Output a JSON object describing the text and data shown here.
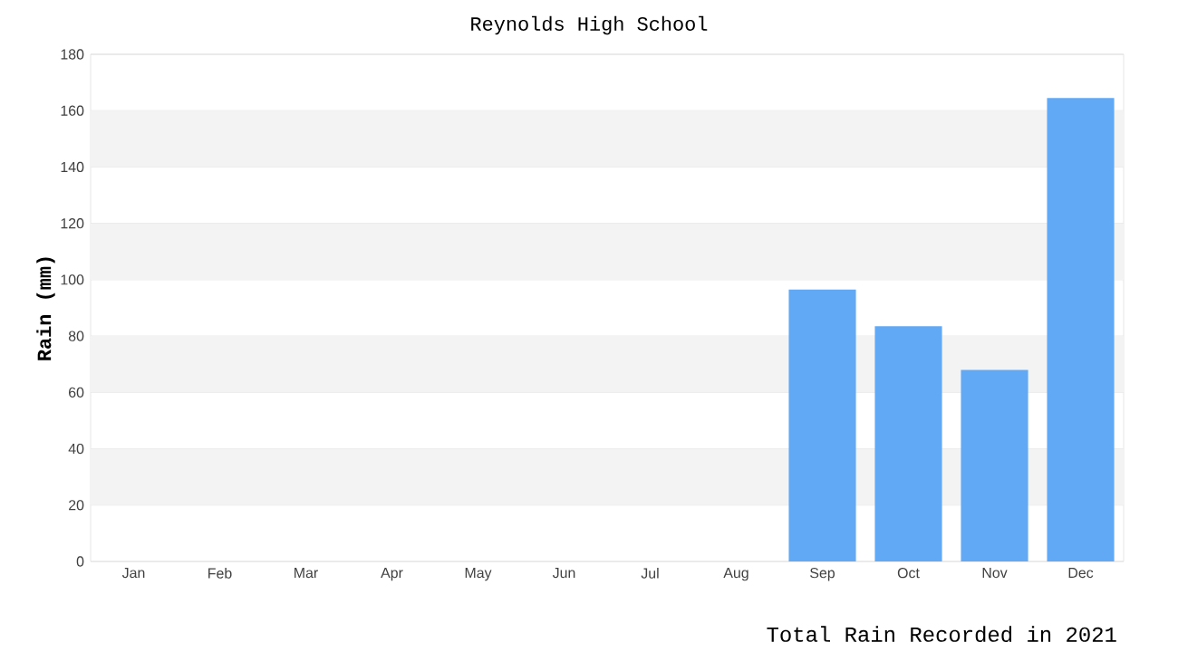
{
  "chart_data": {
    "type": "bar",
    "title": "Reynolds High School",
    "xlabel": "Total Rain Recorded in 2021",
    "ylabel": "Rain (mm)",
    "categories": [
      "Jan",
      "Feb",
      "Mar",
      "Apr",
      "May",
      "Jun",
      "Jul",
      "Aug",
      "Sep",
      "Oct",
      "Nov",
      "Dec"
    ],
    "values": [
      0,
      0,
      0,
      0,
      0,
      0,
      0,
      0,
      96.5,
      83.5,
      68,
      164.5
    ],
    "color": "#61a8f5",
    "ylim": [
      0,
      180
    ],
    "yticks": [
      0,
      20,
      40,
      60,
      80,
      100,
      120,
      140,
      160,
      180
    ],
    "grid": "y"
  }
}
